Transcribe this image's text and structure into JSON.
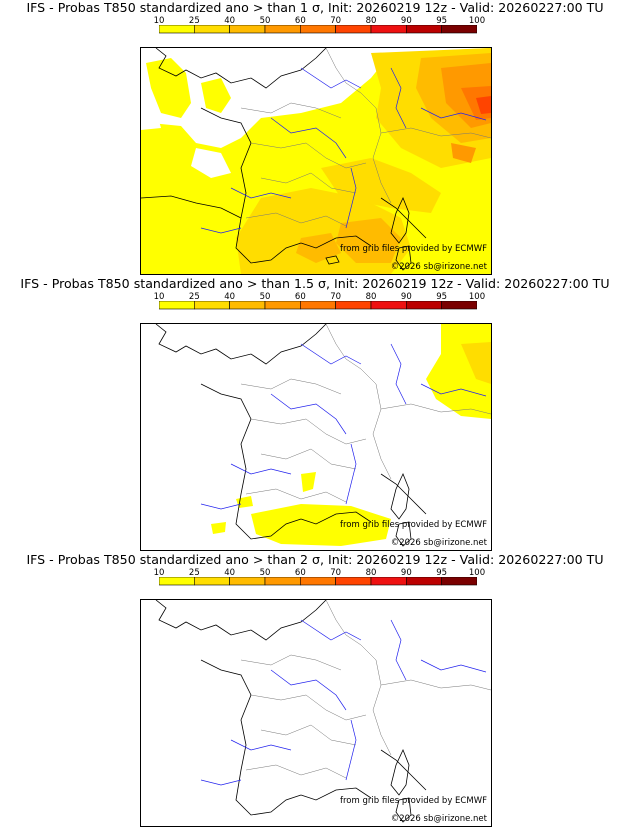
{
  "legend": {
    "ticks": [
      "10",
      "25",
      "40",
      "50",
      "60",
      "70",
      "80",
      "90",
      "95",
      "100"
    ],
    "colors": [
      "#ffff00",
      "#ffdd00",
      "#ffbb00",
      "#ff9900",
      "#ff7700",
      "#ff4400",
      "#ee1111",
      "#bb0000",
      "#7a0000"
    ]
  },
  "panels": [
    {
      "title": "IFS - Probas T850  standardized ano > than 1 σ, Init: 20260219 12z - Valid: 20260227:00 TU",
      "credit_source": "from grib files provided by ECMWF",
      "credit_copyright": "©2026 sb@irizone.net"
    },
    {
      "title": "IFS - Probas T850  standardized ano > than 1.5 σ, Init: 20260219 12z - Valid: 20260227:00 TU",
      "credit_source": "from grib files provided by ECMWF",
      "credit_copyright": "©2026 sb@irizone.net"
    },
    {
      "title": "IFS - Probas T850  standardized ano > than 2 σ, Init: 20260219 12z - Valid: 20260227:00 TU",
      "credit_source": "from grib files provided by ECMWF",
      "credit_copyright": "©2026 sb@irizone.net"
    }
  ]
}
